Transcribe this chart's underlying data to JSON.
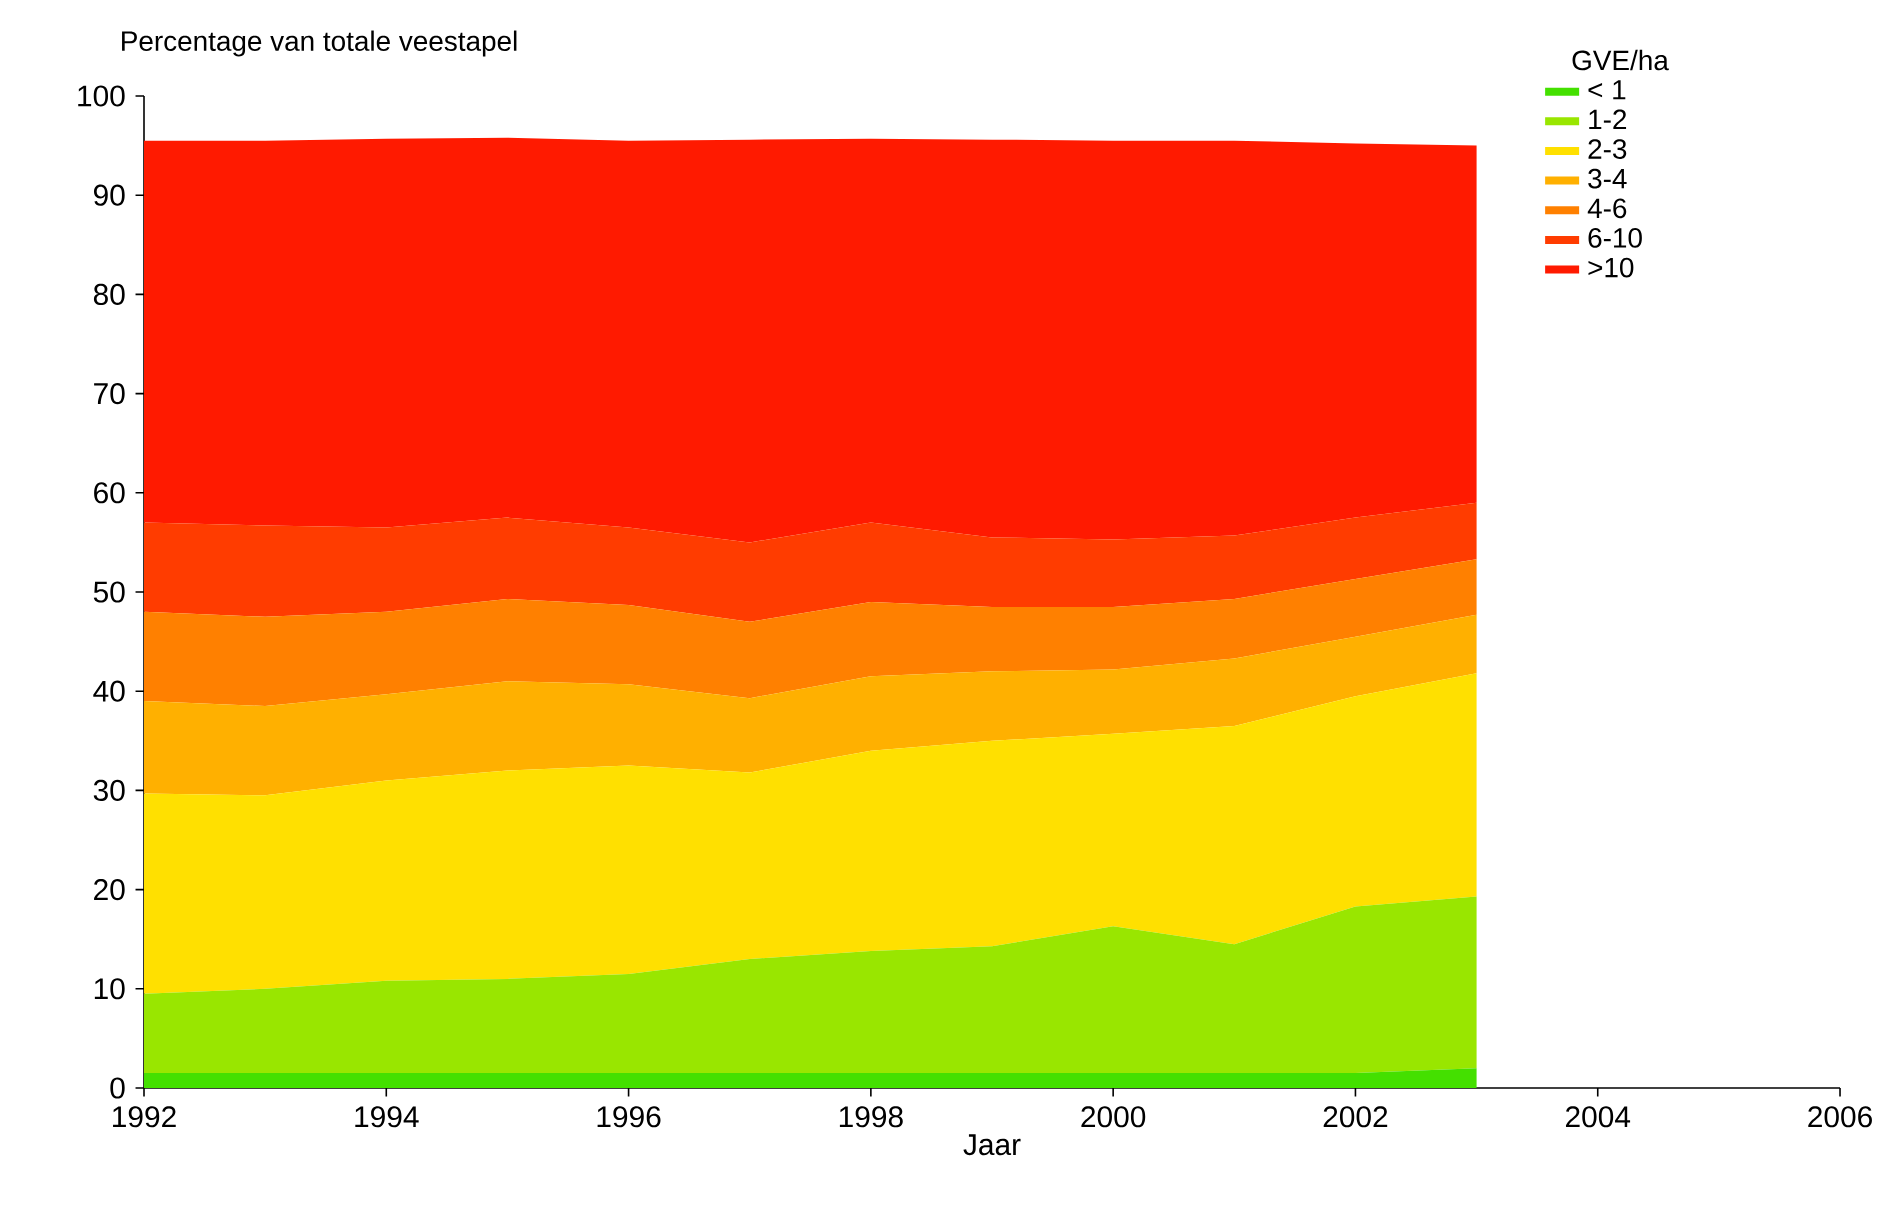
{
  "chart_data": {
    "type": "area",
    "stacked": true,
    "ylabel": "Percentage van totale veestapel",
    "xlabel": "Jaar",
    "legend_title": "GVE/ha",
    "legend": "top right",
    "x": [
      1992,
      1993,
      1994,
      1995,
      1996,
      1997,
      1998,
      1999,
      2000,
      2001,
      2002,
      2003
    ],
    "xlim": [
      1992,
      2006
    ],
    "xticks": [
      1992,
      1994,
      1996,
      1998,
      2000,
      2002,
      2004,
      2006
    ],
    "ylim": [
      0,
      100
    ],
    "yticks": [
      0,
      10,
      20,
      30,
      40,
      50,
      60,
      70,
      80,
      90,
      100
    ],
    "series": [
      {
        "name": "< 1",
        "color": "#44e000",
        "values": [
          1.5,
          1.5,
          1.5,
          1.5,
          1.5,
          1.5,
          1.5,
          1.5,
          1.5,
          1.5,
          1.5,
          2.0
        ]
      },
      {
        "name": "1-2",
        "color": "#99e600",
        "values": [
          8,
          8.5,
          9.3,
          9.5,
          10,
          11.5,
          12.3,
          12.8,
          14.8,
          13,
          16.8,
          17.3
        ]
      },
      {
        "name": "2-3",
        "color": "#ffe000",
        "values": [
          20.2,
          19.5,
          20.2,
          21,
          21,
          18.8,
          20.2,
          20.7,
          19.4,
          22,
          21.2,
          22.5
        ]
      },
      {
        "name": "3-4",
        "color": "#ffb000",
        "values": [
          9.3,
          9,
          8.7,
          9,
          8.2,
          7.5,
          7.5,
          7,
          6.5,
          6.8,
          6,
          5.9
        ]
      },
      {
        "name": "4-6",
        "color": "#ff8000",
        "values": [
          9,
          9,
          8.3,
          8.3,
          8,
          7.7,
          7.5,
          6.5,
          6.3,
          6,
          5.8,
          5.6
        ]
      },
      {
        "name": "6-10",
        "color": "#ff3c00",
        "values": [
          9,
          9.2,
          8.5,
          8.2,
          7.8,
          8,
          8,
          7,
          6.8,
          6.4,
          6.2,
          5.7
        ]
      },
      {
        "name": ">10",
        "color": "#ff1a00",
        "values": [
          38.5,
          38.8,
          39.2,
          38.3,
          39,
          40.6,
          38.7,
          40.1,
          40.2,
          39.8,
          37.7,
          36
        ]
      }
    ]
  }
}
